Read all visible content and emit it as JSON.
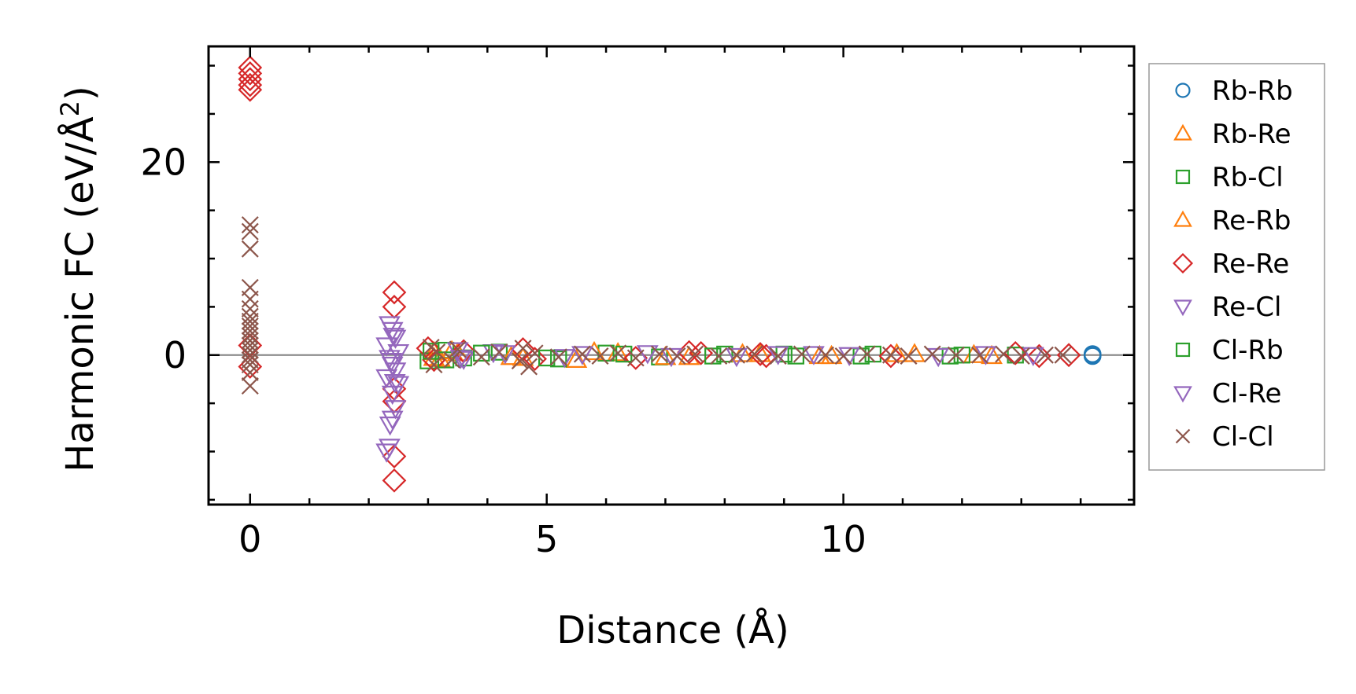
{
  "chart_data": {
    "type": "scatter",
    "xlabel": "Distance (Å)",
    "ylabel": "Harmonic FC (eV/Å²)",
    "ylabel_parts": {
      "main": "Harmonic FC (eV/Å",
      "sup": "2",
      "tail": ")"
    },
    "xlim": [
      -0.7,
      14.9
    ],
    "ylim": [
      -15.5,
      32.0
    ],
    "x_ticks": [
      0,
      5,
      10
    ],
    "y_ticks": [
      0,
      20
    ],
    "grid": false,
    "zero_line": true,
    "legend_position": "outside-right",
    "series": [
      {
        "name": "Rb-Rb",
        "marker": "circle",
        "color": "#1f77b4",
        "points": [
          [
            14.2,
            0.0
          ],
          [
            14.2,
            -0.1
          ],
          [
            14.2,
            0.1
          ]
        ]
      },
      {
        "name": "Rb-Re",
        "marker": "triangle-up",
        "color": "#ff7f0e",
        "points": [
          [
            3.1,
            0.3
          ],
          [
            3.2,
            -0.4
          ],
          [
            3.5,
            0.2
          ],
          [
            4.6,
            -0.3
          ],
          [
            5.5,
            -0.5
          ],
          [
            6.2,
            0.2
          ],
          [
            7.4,
            -0.2
          ],
          [
            8.6,
            0.1
          ],
          [
            9.8,
            -0.1
          ],
          [
            11.2,
            0.1
          ],
          [
            12.5,
            -0.1
          ]
        ]
      },
      {
        "name": "Rb-Cl",
        "marker": "square",
        "color": "#2ca02c",
        "points": [
          [
            3.0,
            -0.6
          ],
          [
            3.3,
            0.5
          ],
          [
            3.6,
            -0.3
          ],
          [
            4.2,
            0.3
          ],
          [
            5.2,
            -0.4
          ],
          [
            6.0,
            0.2
          ],
          [
            6.9,
            -0.2
          ],
          [
            8.0,
            0.1
          ],
          [
            9.2,
            -0.1
          ],
          [
            10.5,
            0.1
          ],
          [
            11.8,
            -0.1
          ],
          [
            12.9,
            0.0
          ]
        ]
      },
      {
        "name": "Re-Rb",
        "marker": "triangle-up",
        "color": "#ff7f0e",
        "points": [
          [
            3.1,
            -0.3
          ],
          [
            3.4,
            0.4
          ],
          [
            4.4,
            -0.2
          ],
          [
            5.8,
            0.3
          ],
          [
            7.0,
            -0.2
          ],
          [
            8.3,
            0.1
          ],
          [
            9.6,
            -0.1
          ],
          [
            10.9,
            0.1
          ],
          [
            12.2,
            0.0
          ]
        ]
      },
      {
        "name": "Re-Re",
        "marker": "diamond",
        "color": "#d62728",
        "points": [
          [
            0,
            29.8
          ],
          [
            0,
            29.2
          ],
          [
            0,
            28.6
          ],
          [
            0,
            28.0
          ],
          [
            0,
            27.5
          ],
          [
            0,
            1.0
          ],
          [
            0,
            -1.2
          ],
          [
            2.43,
            6.5
          ],
          [
            2.43,
            5.0
          ],
          [
            2.43,
            -3.5
          ],
          [
            2.43,
            -4.8
          ],
          [
            2.43,
            -10.5
          ],
          [
            2.43,
            -13.0
          ],
          [
            3.0,
            0.7
          ],
          [
            3.1,
            -0.5
          ],
          [
            3.6,
            0.4
          ],
          [
            4.6,
            0.6
          ],
          [
            4.8,
            -0.4
          ],
          [
            6.5,
            -0.3
          ],
          [
            7.4,
            0.3
          ],
          [
            7.6,
            0.2
          ],
          [
            8.6,
            0.1
          ],
          [
            8.7,
            -0.1
          ],
          [
            10.8,
            -0.1
          ],
          [
            12.9,
            0.2
          ],
          [
            13.3,
            -0.1
          ],
          [
            13.8,
            0.0
          ]
        ]
      },
      {
        "name": "Re-Cl",
        "marker": "triangle-down",
        "color": "#9467bd",
        "points": [
          [
            2.35,
            3.2
          ],
          [
            2.4,
            2.6
          ],
          [
            2.45,
            1.8
          ],
          [
            2.3,
            1.0
          ],
          [
            2.5,
            0.3
          ],
          [
            2.35,
            -0.3
          ],
          [
            2.4,
            -1.0
          ],
          [
            2.45,
            -1.6
          ],
          [
            2.3,
            -2.3
          ],
          [
            2.5,
            -3.0
          ],
          [
            2.4,
            -4.0
          ],
          [
            2.45,
            -5.5
          ],
          [
            2.4,
            -6.6
          ],
          [
            2.35,
            -9.5
          ],
          [
            2.3,
            -10.0
          ],
          [
            3.5,
            0.5
          ],
          [
            3.6,
            -0.4
          ],
          [
            4.1,
            0.3
          ],
          [
            5.3,
            -0.2
          ],
          [
            6.7,
            0.2
          ],
          [
            8.2,
            -0.1
          ],
          [
            9.5,
            0.1
          ],
          [
            11.6,
            -0.1
          ],
          [
            13.2,
            0.0
          ]
        ]
      },
      {
        "name": "Cl-Rb",
        "marker": "square",
        "color": "#2ca02c",
        "points": [
          [
            3.05,
            0.4
          ],
          [
            3.3,
            -0.5
          ],
          [
            3.9,
            0.2
          ],
          [
            5.0,
            -0.3
          ],
          [
            6.3,
            0.1
          ],
          [
            7.8,
            -0.1
          ],
          [
            9.0,
            0.1
          ],
          [
            10.3,
            -0.1
          ],
          [
            12.0,
            0.0
          ]
        ]
      },
      {
        "name": "Cl-Re",
        "marker": "triangle-down",
        "color": "#9467bd",
        "points": [
          [
            2.42,
            2.0
          ],
          [
            2.38,
            -0.6
          ],
          [
            2.44,
            -2.8
          ],
          [
            2.36,
            -7.2
          ],
          [
            3.55,
            -0.3
          ],
          [
            4.3,
            0.2
          ],
          [
            5.6,
            0.1
          ],
          [
            7.1,
            -0.1
          ],
          [
            8.9,
            0.1
          ],
          [
            10.1,
            0.0
          ],
          [
            12.4,
            0.1
          ]
        ]
      },
      {
        "name": "Cl-Cl",
        "marker": "x",
        "color": "#8c564b",
        "points": [
          [
            0,
            13.5
          ],
          [
            0,
            12.8
          ],
          [
            0,
            11.0
          ],
          [
            0,
            7.0
          ],
          [
            0,
            5.8
          ],
          [
            0,
            4.8
          ],
          [
            0,
            4.0
          ],
          [
            0,
            3.5
          ],
          [
            0,
            3.0
          ],
          [
            0,
            2.5
          ],
          [
            0,
            2.0
          ],
          [
            0,
            1.5
          ],
          [
            0,
            1.0
          ],
          [
            0,
            0.5
          ],
          [
            0,
            0.0
          ],
          [
            0,
            -0.5
          ],
          [
            0,
            -1.0
          ],
          [
            0,
            -1.8
          ],
          [
            0,
            -3.2
          ],
          [
            3.05,
            0.8
          ],
          [
            3.1,
            -1.0
          ],
          [
            3.15,
            0.3
          ],
          [
            3.4,
            -0.5
          ],
          [
            3.5,
            0.6
          ],
          [
            3.9,
            -0.2
          ],
          [
            4.2,
            0.3
          ],
          [
            4.55,
            -0.6
          ],
          [
            4.6,
            0.7
          ],
          [
            4.7,
            -1.2
          ],
          [
            4.8,
            0.2
          ],
          [
            5.2,
            -0.2
          ],
          [
            5.6,
            0.1
          ],
          [
            5.9,
            -0.1
          ],
          [
            6.2,
            0.2
          ],
          [
            6.5,
            -0.3
          ],
          [
            6.9,
            0.1
          ],
          [
            7.2,
            -0.1
          ],
          [
            7.5,
            0.1
          ],
          [
            7.9,
            -0.1
          ],
          [
            8.2,
            0.0
          ],
          [
            8.5,
            0.1
          ],
          [
            8.9,
            -0.1
          ],
          [
            9.3,
            0.1
          ],
          [
            9.7,
            0.0
          ],
          [
            10.0,
            -0.1
          ],
          [
            10.4,
            0.1
          ],
          [
            10.8,
            0.0
          ],
          [
            11.1,
            -0.1
          ],
          [
            11.5,
            0.1
          ],
          [
            11.9,
            0.0
          ],
          [
            12.3,
            0.0
          ],
          [
            12.7,
            0.1
          ],
          [
            13.0,
            -0.1
          ],
          [
            13.4,
            0.0
          ],
          [
            13.7,
            0.0
          ]
        ]
      }
    ]
  }
}
